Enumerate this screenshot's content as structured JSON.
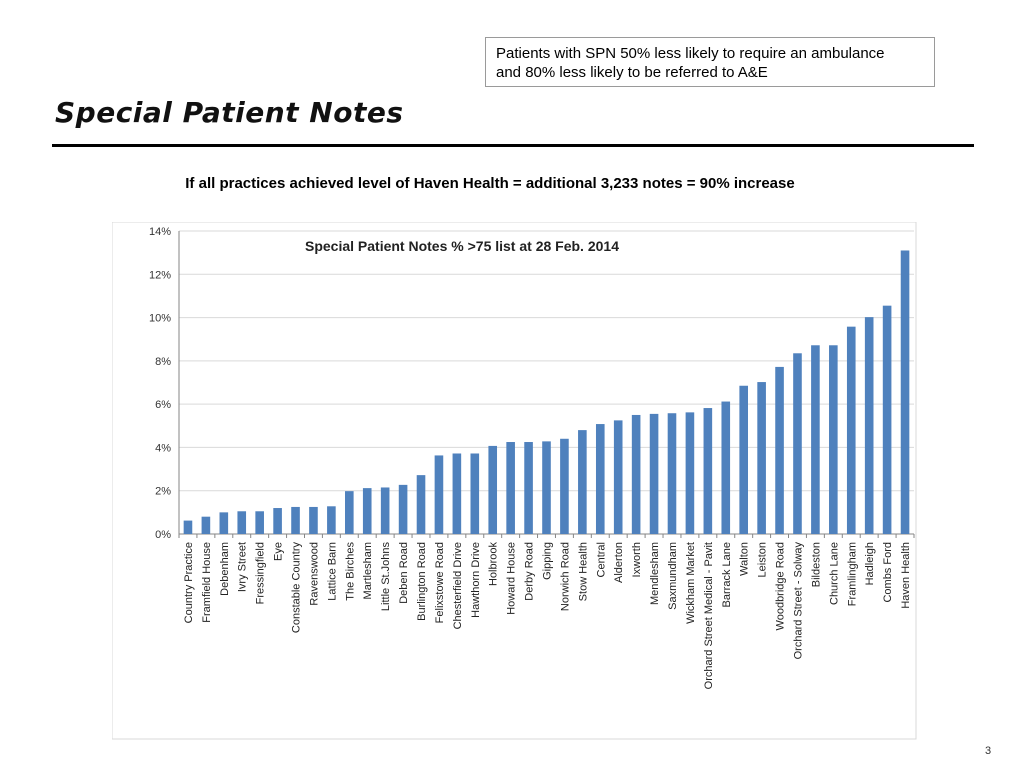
{
  "callout": {
    "line1": "Patients with SPN 50% less likely to require an ambulance",
    "line2": "and 80% less likely to be referred to A&E"
  },
  "page": {
    "title": "Special Patient Notes",
    "headline": "If all practices achieved level of Haven Health = additional 3,233 notes = 90% increase",
    "number": "3"
  },
  "colors": {
    "bar": "#4f81bd",
    "grid": "#d9d9d9",
    "axis": "#868686"
  },
  "chart_data": {
    "type": "bar",
    "title": "Special Patient Notes % >75 list at 28 Feb. 2014",
    "xlabel": "",
    "ylabel": "",
    "ylim": [
      0,
      14
    ],
    "yticks": [
      "0%",
      "2%",
      "4%",
      "6%",
      "8%",
      "10%",
      "12%",
      "14%"
    ],
    "grid": true,
    "legend": "none",
    "categories": [
      "Country Practice",
      "Framfield House",
      "Debenham",
      "Ivry Street",
      "Fressingfield",
      "Eye",
      "Constable Country",
      "Ravenswood",
      "Lattice Barn",
      "The Birches",
      "Martlesham",
      "Little St.Johns",
      "Deben Road",
      "Burlington Road",
      "Felixstowe Road",
      "Chesterfield Drive",
      "Hawthorn Drive",
      "Holbrook",
      "Howard House",
      "Derby Road",
      "Gipping",
      "Norwich Road",
      "Stow Health",
      "Central",
      "Alderton",
      "Ixworth",
      "Mendlesham",
      "Saxmundham",
      "Wickham Market",
      "Orchard Street Medical - Pavit",
      "Barrack Lane",
      "Walton",
      "Leiston",
      "Woodbridge Road",
      "Orchard Street - Solway",
      "Bildeston",
      "Church Lane",
      "Framlingham",
      "Hadleigh",
      "Combs Ford",
      "Haven Health"
    ],
    "values": [
      0.62,
      0.8,
      1.0,
      1.05,
      1.05,
      1.2,
      1.25,
      1.25,
      1.28,
      1.98,
      2.12,
      2.15,
      2.27,
      2.72,
      3.63,
      3.72,
      3.72,
      4.07,
      4.25,
      4.25,
      4.28,
      4.4,
      4.8,
      5.08,
      5.25,
      5.5,
      5.55,
      5.58,
      5.62,
      5.82,
      6.12,
      6.85,
      7.02,
      7.72,
      8.35,
      8.72,
      8.72,
      9.58,
      10.02,
      10.55,
      13.1
    ]
  }
}
